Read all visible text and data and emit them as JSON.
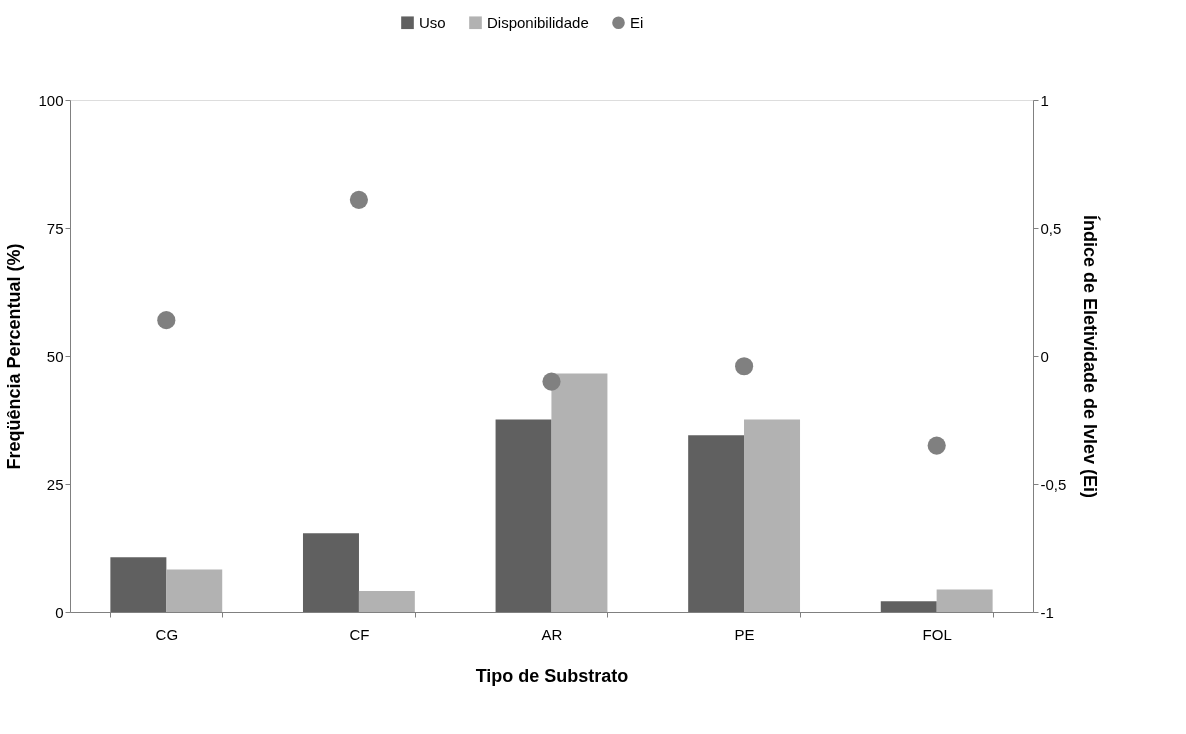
{
  "chart_data": {
    "type": "bar",
    "xlabel": "Tipo de Substrato",
    "ylabel": "Freqüência Percentual (%)",
    "y2label": "Índice de Eletividade de Ivlev (Ei)",
    "categories": [
      "CG",
      "CF",
      "AR",
      "PE",
      "FOL"
    ],
    "series": [
      {
        "name": "Uso",
        "type": "bar",
        "color": "#606060",
        "values": [
          10.7,
          15.4,
          37.6,
          34.5,
          2.1
        ]
      },
      {
        "name": "Disponibilidade",
        "type": "bar",
        "color": "#b2b2b2",
        "values": [
          8.3,
          4.1,
          46.6,
          37.6,
          4.4
        ]
      },
      {
        "name": "Ei",
        "type": "scatter",
        "axis": "y2",
        "marker": "circle",
        "color": "#808080",
        "values": [
          0.14,
          0.61,
          -0.1,
          -0.04,
          -0.35
        ]
      }
    ],
    "ylim": [
      0,
      100
    ],
    "yticks": [
      0,
      25,
      50,
      75,
      100
    ],
    "y2lim": [
      -1,
      1
    ],
    "y2ticks": [
      -1,
      {
        "value": -0.5,
        "label": "-0,5"
      },
      0,
      {
        "value": 0.5,
        "label": "0,5"
      },
      1
    ],
    "legend": "top",
    "grid": false
  }
}
